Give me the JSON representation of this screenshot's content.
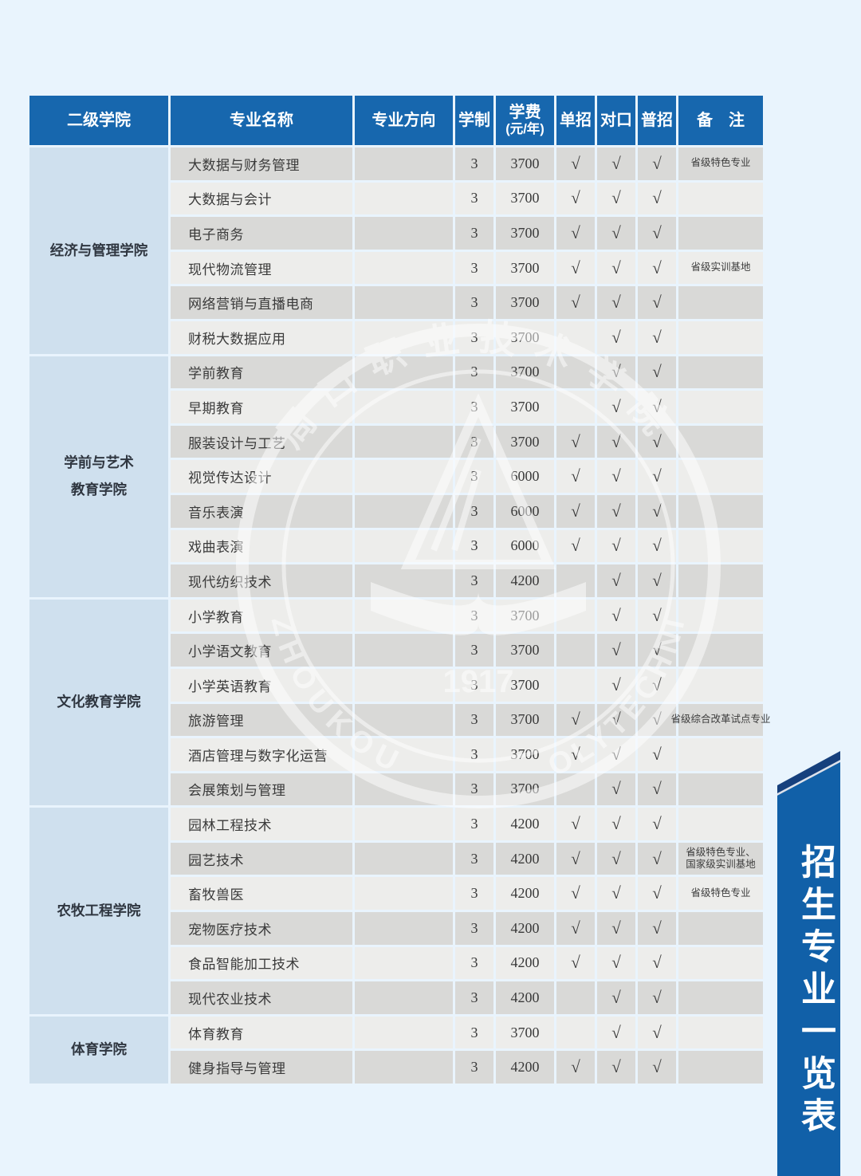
{
  "page": {
    "background": "#e9f4fd"
  },
  "colors": {
    "header_bg": "#1767ae",
    "college_bg": "#cfe0ee",
    "row_dark": "#d9d9d7",
    "row_light": "#ededeb",
    "text": "#3a3a3a",
    "ribbon_face": "#1160a8",
    "ribbon_fold": "#16407d"
  },
  "ribbon": {
    "title": "招生专业一览表"
  },
  "watermark": {
    "top_arc_text": "周口职业技术学院",
    "left_arc_text": "ZHOUKOU",
    "right_arc_text": "POLYTECHNIC",
    "year": "1917"
  },
  "table": {
    "check_symbol": "√",
    "header": {
      "college": "二级学院",
      "major": "专业名称",
      "direction": "专业方向",
      "years": "学制",
      "tuition_line1": "学费",
      "tuition_line2": "(元/年)",
      "danzhao": "单招",
      "duikou": "对口",
      "puzhao": "普招",
      "remark": "备　注"
    },
    "colleges": [
      {
        "name_lines": [
          "经济与管理学院"
        ],
        "majors": [
          {
            "name": "大数据与财务管理",
            "direction": "",
            "years": "3",
            "tuition": "3700",
            "dan": true,
            "dui": true,
            "pu": true,
            "remark": "省级特色专业"
          },
          {
            "name": "大数据与会计",
            "direction": "",
            "years": "3",
            "tuition": "3700",
            "dan": true,
            "dui": true,
            "pu": true,
            "remark": ""
          },
          {
            "name": "电子商务",
            "direction": "",
            "years": "3",
            "tuition": "3700",
            "dan": true,
            "dui": true,
            "pu": true,
            "remark": ""
          },
          {
            "name": "现代物流管理",
            "direction": "",
            "years": "3",
            "tuition": "3700",
            "dan": true,
            "dui": true,
            "pu": true,
            "remark": "省级实训基地"
          },
          {
            "name": "网络营销与直播电商",
            "direction": "",
            "years": "3",
            "tuition": "3700",
            "dan": true,
            "dui": true,
            "pu": true,
            "remark": ""
          },
          {
            "name": "财税大数据应用",
            "direction": "",
            "years": "3",
            "tuition": "3700",
            "dan": false,
            "dui": true,
            "pu": true,
            "remark": ""
          }
        ]
      },
      {
        "name_lines": [
          "学前与艺术",
          "教育学院"
        ],
        "majors": [
          {
            "name": "学前教育",
            "direction": "",
            "years": "3",
            "tuition": "3700",
            "dan": false,
            "dui": true,
            "pu": true,
            "remark": ""
          },
          {
            "name": "早期教育",
            "direction": "",
            "years": "3",
            "tuition": "3700",
            "dan": false,
            "dui": true,
            "pu": true,
            "remark": ""
          },
          {
            "name": "服装设计与工艺",
            "direction": "",
            "years": "3",
            "tuition": "3700",
            "dan": true,
            "dui": true,
            "pu": true,
            "remark": ""
          },
          {
            "name": "视觉传达设计",
            "direction": "",
            "years": "3",
            "tuition": "6000",
            "dan": true,
            "dui": true,
            "pu": true,
            "remark": ""
          },
          {
            "name": "音乐表演",
            "direction": "",
            "years": "3",
            "tuition": "6000",
            "dan": true,
            "dui": true,
            "pu": true,
            "remark": ""
          },
          {
            "name": "戏曲表演",
            "direction": "",
            "years": "3",
            "tuition": "6000",
            "dan": true,
            "dui": true,
            "pu": true,
            "remark": ""
          },
          {
            "name": "现代纺织技术",
            "direction": "",
            "years": "3",
            "tuition": "4200",
            "dan": false,
            "dui": true,
            "pu": true,
            "remark": ""
          }
        ]
      },
      {
        "name_lines": [
          "文化教育学院"
        ],
        "majors": [
          {
            "name": "小学教育",
            "direction": "",
            "years": "3",
            "tuition": "3700",
            "dan": false,
            "dui": true,
            "pu": true,
            "remark": ""
          },
          {
            "name": "小学语文教育",
            "direction": "",
            "years": "3",
            "tuition": "3700",
            "dan": false,
            "dui": true,
            "pu": true,
            "remark": ""
          },
          {
            "name": "小学英语教育",
            "direction": "",
            "years": "3",
            "tuition": "3700",
            "dan": false,
            "dui": true,
            "pu": true,
            "remark": ""
          },
          {
            "name": "旅游管理",
            "direction": "",
            "years": "3",
            "tuition": "3700",
            "dan": true,
            "dui": true,
            "pu": true,
            "remark": "省级综合改革试点专业"
          },
          {
            "name": "酒店管理与数字化运营",
            "direction": "",
            "years": "3",
            "tuition": "3700",
            "dan": true,
            "dui": true,
            "pu": true,
            "remark": ""
          },
          {
            "name": "会展策划与管理",
            "direction": "",
            "years": "3",
            "tuition": "3700",
            "dan": false,
            "dui": true,
            "pu": true,
            "remark": ""
          }
        ]
      },
      {
        "name_lines": [
          "农牧工程学院"
        ],
        "majors": [
          {
            "name": "园林工程技术",
            "direction": "",
            "years": "3",
            "tuition": "4200",
            "dan": true,
            "dui": true,
            "pu": true,
            "remark": ""
          },
          {
            "name": "园艺技术",
            "direction": "",
            "years": "3",
            "tuition": "4200",
            "dan": true,
            "dui": true,
            "pu": true,
            "remark": "省级特色专业、国家级实训基地"
          },
          {
            "name": "畜牧兽医",
            "direction": "",
            "years": "3",
            "tuition": "4200",
            "dan": true,
            "dui": true,
            "pu": true,
            "remark": "省级特色专业"
          },
          {
            "name": "宠物医疗技术",
            "direction": "",
            "years": "3",
            "tuition": "4200",
            "dan": true,
            "dui": true,
            "pu": true,
            "remark": ""
          },
          {
            "name": "食品智能加工技术",
            "direction": "",
            "years": "3",
            "tuition": "4200",
            "dan": true,
            "dui": true,
            "pu": true,
            "remark": ""
          },
          {
            "name": "现代农业技术",
            "direction": "",
            "years": "3",
            "tuition": "4200",
            "dan": false,
            "dui": true,
            "pu": true,
            "remark": ""
          }
        ]
      },
      {
        "name_lines": [
          "体育学院"
        ],
        "majors": [
          {
            "name": "体育教育",
            "direction": "",
            "years": "3",
            "tuition": "3700",
            "dan": false,
            "dui": true,
            "pu": true,
            "remark": ""
          },
          {
            "name": "健身指导与管理",
            "direction": "",
            "years": "3",
            "tuition": "4200",
            "dan": true,
            "dui": true,
            "pu": true,
            "remark": ""
          }
        ]
      }
    ]
  }
}
